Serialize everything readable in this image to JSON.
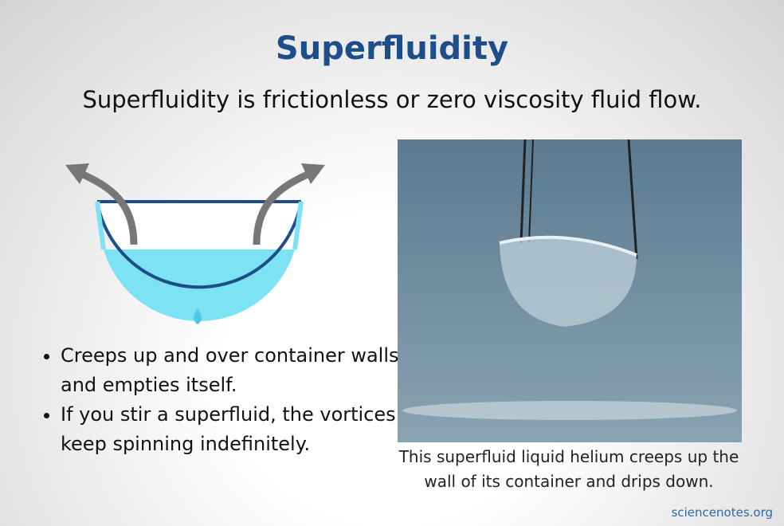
{
  "header": {
    "title": "Superfluidity",
    "subtitle": "Superfluidity is frictionless or zero viscosity fluid flow."
  },
  "bullets": [
    "Creeps up and over container walls and empties itself.",
    "If you stir a superfluid, the vortices keep spinning indefinitely."
  ],
  "photo": {
    "caption": "This superfluid liquid helium creeps up the wall of its container and drips down."
  },
  "footer": {
    "credit": "sciencenotes.org"
  }
}
